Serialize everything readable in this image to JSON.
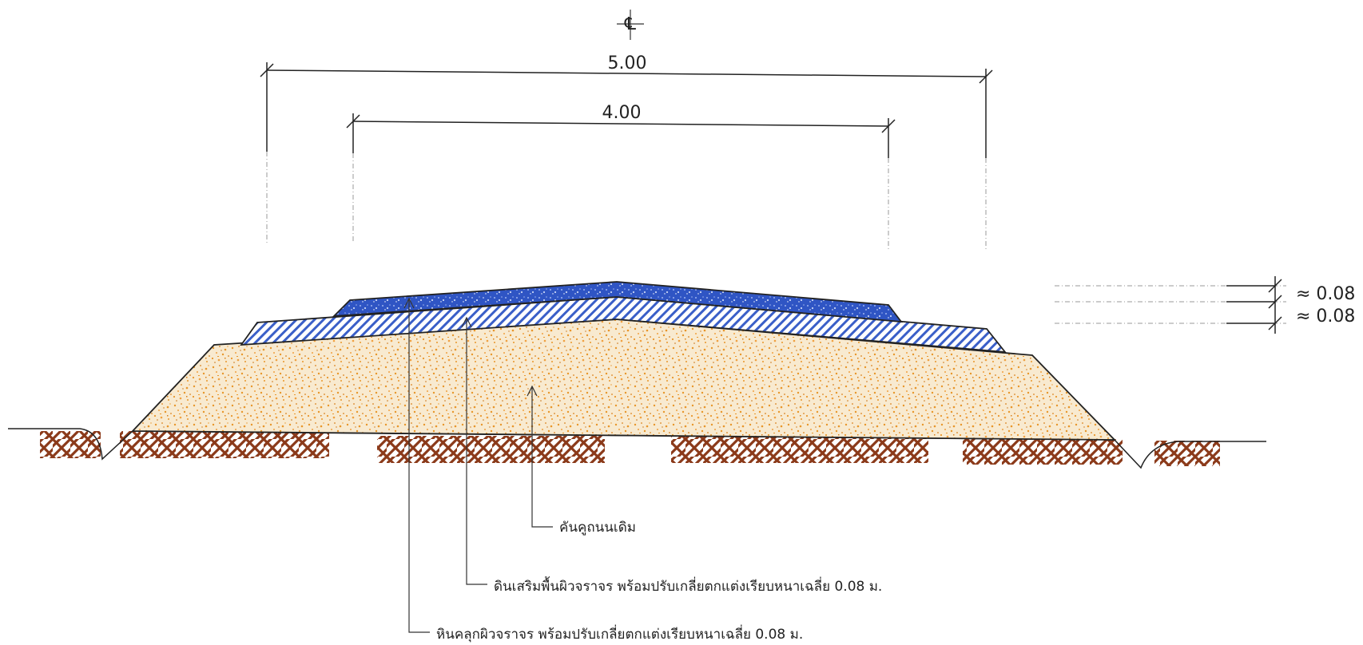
{
  "centerline": {
    "symbol": "℄"
  },
  "dimensions": {
    "overall_width": "5.00",
    "surface_width": "4.00",
    "thickness_top": "≈ 0.08",
    "thickness_bottom": "≈ 0.08"
  },
  "labels": {
    "existing_embankment": "คันคูถนนเดิม",
    "subbase_layer": "ดินเสริมพื้นผิวจราจร พร้อมปรับเกลี่ยตกแต่งเรียบหนาเฉลี่ย  0.08 ม.",
    "surface_layer": "หินคลุกผิวจราจร พร้อมปรับเกลี่ยตกแต่งเรียบหนาเฉลี่ย  0.08  ม."
  },
  "colors": {
    "embankment_fill": "#f7e6c8",
    "embankment_dots": "#e8962a",
    "subbase_hatch": "#3a5fc8",
    "surface_fill": "#2f55c4",
    "ground_hatch": "#8b3a1a",
    "line": "#222222"
  }
}
